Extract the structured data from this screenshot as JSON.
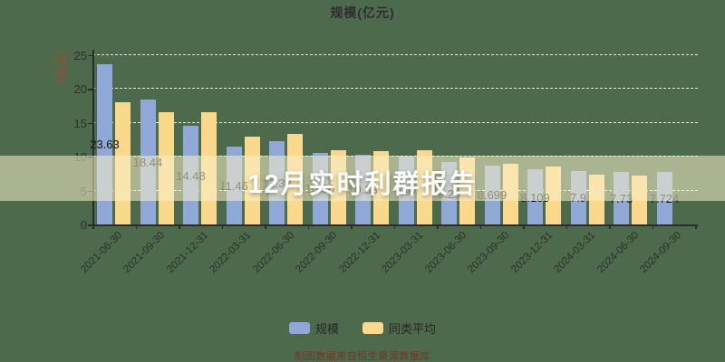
{
  "title": "规模(亿元)",
  "y_axis_name": "(亿元)",
  "banner": {
    "text": "12月实时利群报告"
  },
  "legend": [
    {
      "label": "规模",
      "color": "#8FA8D6"
    },
    {
      "label": "同类平均",
      "color": "#FAD88C"
    }
  ],
  "footnote": "制图数据来自恒生聚源数据库",
  "colors": {
    "background": "#4d6a4d",
    "bar_scale": "#8FA8D6",
    "bar_peer_avg": "#FAD88C",
    "gridline": "#ffffff",
    "axis": "#2b2b2b",
    "axis_name_red": "#d93322",
    "banner_text": "#ffffff",
    "footnote": "#6f3526"
  },
  "chart_data": {
    "type": "bar",
    "title": "规模(亿元)",
    "ylabel": "(亿元)",
    "ylim": [
      0,
      25
    ],
    "yticks": [
      0,
      5,
      10,
      15,
      20,
      25
    ],
    "grid": "horizontal-dashed",
    "legend_position": "bottom",
    "categories": [
      "2021-06-30",
      "2021-09-30",
      "2021-12-31",
      "2022-03-31",
      "2022-06-30",
      "2022-09-30",
      "2022-12-31",
      "2023-03-31",
      "2023-06-30",
      "2023-09-30",
      "2023-12-31",
      "2024-03-31",
      "2024-06-30",
      "2024-09-30"
    ],
    "series": [
      {
        "name": "规模",
        "color": "#8FA8D6",
        "values": [
          23.63,
          18.44,
          14.48,
          11.46,
          12.32,
          10.56,
          10.33,
          9.97,
          9.2,
          8.699,
          8.109,
          7.9,
          7.73,
          7.724
        ],
        "labels": [
          "23.63",
          "18.44",
          "14.48",
          "11.46",
          "12.32",
          "10.56",
          "10.33",
          "9.97",
          "9.20",
          "8.699",
          "8.109",
          "7.9",
          "7.73",
          "7.724"
        ]
      },
      {
        "name": "同类平均",
        "color": "#FAD88C",
        "values": [
          18.0,
          16.5,
          16.6,
          12.9,
          13.4,
          11.0,
          10.8,
          10.9,
          9.9,
          8.9,
          8.56,
          7.31,
          7.23,
          null
        ]
      }
    ]
  }
}
